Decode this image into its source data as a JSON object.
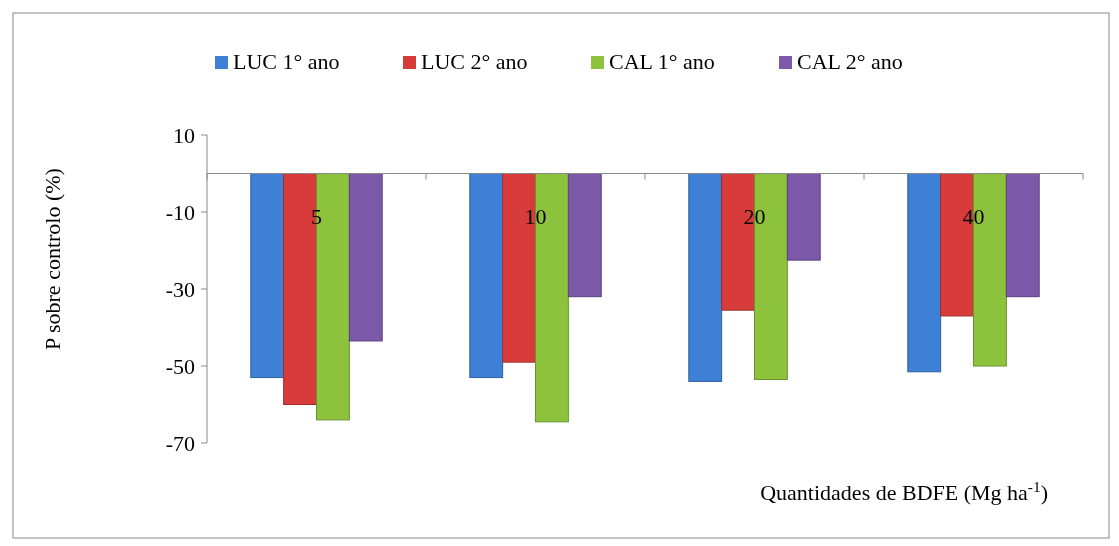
{
  "chart_data": {
    "type": "bar",
    "ylabel": "P sobre controlo (%)",
    "xlabel": "Quantidades de BDFE (Mg ha$^{-1}$)",
    "categories": [
      "5",
      "10",
      "20",
      "40"
    ],
    "series": [
      {
        "name": "LUC 1° ano",
        "color": "#3d80d6",
        "values": [
          -53,
          -53,
          -54,
          -51.5
        ]
      },
      {
        "name": "LUC 2° ano",
        "color": "#d83c3a",
        "values": [
          -60,
          -49,
          -35.5,
          -37
        ]
      },
      {
        "name": "CAL 1° ano",
        "color": "#8dc23c",
        "values": [
          -64,
          -64.5,
          -53.5,
          -50
        ]
      },
      {
        "name": "CAL 2° ano",
        "color": "#7b58a8",
        "values": [
          -43.5,
          -32,
          -22.5,
          -32
        ]
      }
    ],
    "ylim": [
      -70,
      10
    ],
    "yticks": [
      -70,
      -50,
      -30,
      -10,
      10
    ],
    "legend": "top",
    "grid": false
  }
}
